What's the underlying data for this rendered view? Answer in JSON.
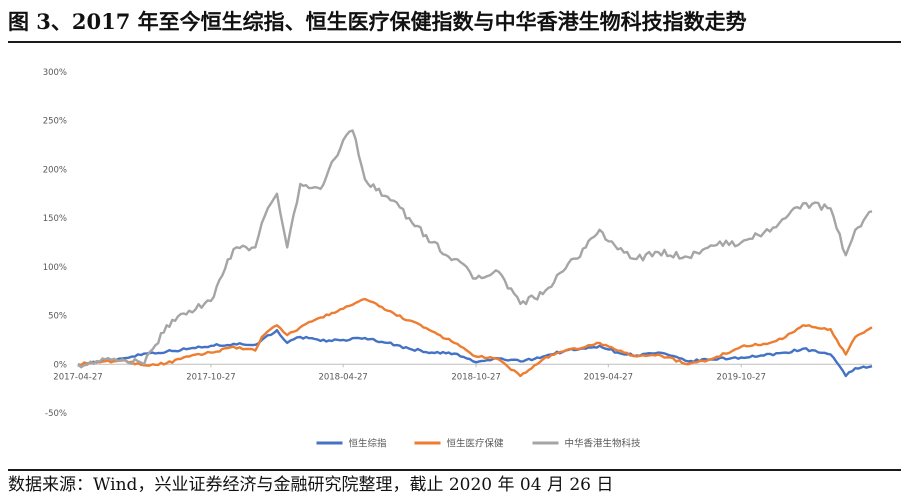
{
  "figure": {
    "title": "图 3、2017 年至今恒生综指、恒生医疗保健指数与中华香港生物科技指数走势",
    "source": "数据来源：Wind，兴业证券经济与金融研究院整理，截止 2020 年 04 月 26 日"
  },
  "chart_data": {
    "type": "line",
    "title": "",
    "xlabel": "",
    "ylabel": "",
    "ylim": [
      -50,
      300
    ],
    "y_ticks": [
      -50,
      0,
      50,
      100,
      150,
      200,
      250,
      300
    ],
    "y_tick_labels": [
      "-50%",
      "0%",
      "50%",
      "100%",
      "150%",
      "200%",
      "250%",
      "300%"
    ],
    "x_range": [
      "2017-04-27",
      "2020-04-24"
    ],
    "x_ticks": [
      "2017-04-27",
      "2017-10-27",
      "2018-04-27",
      "2018-10-27",
      "2019-04-27",
      "2019-10-27"
    ],
    "grid": false,
    "legend_position": "bottom",
    "series": [
      {
        "name": "恒生综指",
        "color": "#4472c4",
        "points": [
          [
            "2017-04-27",
            0
          ],
          [
            "2017-05-27",
            3
          ],
          [
            "2017-06-27",
            6
          ],
          [
            "2017-07-27",
            11
          ],
          [
            "2017-08-27",
            13
          ],
          [
            "2017-09-27",
            16
          ],
          [
            "2017-10-27",
            19
          ],
          [
            "2017-11-27",
            21
          ],
          [
            "2017-12-27",
            20
          ],
          [
            "2018-01-05",
            25
          ],
          [
            "2018-01-26",
            35
          ],
          [
            "2018-02-09",
            22
          ],
          [
            "2018-02-27",
            28
          ],
          [
            "2018-03-27",
            24
          ],
          [
            "2018-04-27",
            25
          ],
          [
            "2018-05-27",
            27
          ],
          [
            "2018-06-27",
            22
          ],
          [
            "2018-07-27",
            16
          ],
          [
            "2018-08-27",
            12
          ],
          [
            "2018-09-27",
            11
          ],
          [
            "2018-10-27",
            2
          ],
          [
            "2018-11-27",
            6
          ],
          [
            "2018-12-27",
            3
          ],
          [
            "2019-01-27",
            8
          ],
          [
            "2019-02-27",
            14
          ],
          [
            "2019-03-27",
            16
          ],
          [
            "2019-04-15",
            19
          ],
          [
            "2019-05-10",
            12
          ],
          [
            "2019-06-05",
            9
          ],
          [
            "2019-07-05",
            12
          ],
          [
            "2019-08-15",
            3
          ],
          [
            "2019-09-15",
            5
          ],
          [
            "2019-10-27",
            7
          ],
          [
            "2019-11-27",
            9
          ],
          [
            "2019-12-27",
            12
          ],
          [
            "2020-01-20",
            16
          ],
          [
            "2020-02-27",
            10
          ],
          [
            "2020-03-19",
            -12
          ],
          [
            "2020-04-01",
            -4
          ],
          [
            "2020-04-24",
            -2
          ]
        ]
      },
      {
        "name": "恒生医疗保健",
        "color": "#ed7d31",
        "points": [
          [
            "2017-04-27",
            0
          ],
          [
            "2017-05-27",
            2
          ],
          [
            "2017-06-27",
            4
          ],
          [
            "2017-07-27",
            -1
          ],
          [
            "2017-08-27",
            1
          ],
          [
            "2017-09-27",
            8
          ],
          [
            "2017-10-27",
            12
          ],
          [
            "2017-11-27",
            18
          ],
          [
            "2017-12-27",
            14
          ],
          [
            "2018-01-05",
            28
          ],
          [
            "2018-01-26",
            40
          ],
          [
            "2018-02-09",
            30
          ],
          [
            "2018-02-27",
            38
          ],
          [
            "2018-03-27",
            48
          ],
          [
            "2018-04-27",
            57
          ],
          [
            "2018-05-27",
            67
          ],
          [
            "2018-06-27",
            55
          ],
          [
            "2018-07-27",
            45
          ],
          [
            "2018-08-27",
            34
          ],
          [
            "2018-09-27",
            22
          ],
          [
            "2018-10-27",
            8
          ],
          [
            "2018-11-27",
            5
          ],
          [
            "2018-12-27",
            -12
          ],
          [
            "2019-01-27",
            5
          ],
          [
            "2019-02-27",
            14
          ],
          [
            "2019-03-27",
            18
          ],
          [
            "2019-04-15",
            22
          ],
          [
            "2019-05-10",
            14
          ],
          [
            "2019-06-05",
            8
          ],
          [
            "2019-07-05",
            10
          ],
          [
            "2019-08-15",
            0
          ],
          [
            "2019-09-15",
            5
          ],
          [
            "2019-10-27",
            18
          ],
          [
            "2019-11-27",
            21
          ],
          [
            "2019-12-27",
            28
          ],
          [
            "2020-01-20",
            40
          ],
          [
            "2020-02-27",
            36
          ],
          [
            "2020-03-19",
            10
          ],
          [
            "2020-04-01",
            28
          ],
          [
            "2020-04-24",
            38
          ]
        ]
      },
      {
        "name": "中华香港生物科技",
        "color": "#a5a5a5",
        "points": [
          [
            "2017-04-27",
            0
          ],
          [
            "2017-05-27",
            3
          ],
          [
            "2017-06-27",
            5
          ],
          [
            "2017-07-27",
            0
          ],
          [
            "2017-08-27",
            40
          ],
          [
            "2017-09-27",
            55
          ],
          [
            "2017-10-27",
            65
          ],
          [
            "2017-11-27",
            118
          ],
          [
            "2017-12-27",
            120
          ],
          [
            "2018-01-05",
            145
          ],
          [
            "2018-01-26",
            175
          ],
          [
            "2018-02-09",
            120
          ],
          [
            "2018-02-27",
            185
          ],
          [
            "2018-03-27",
            180
          ],
          [
            "2018-04-27",
            230
          ],
          [
            "2018-05-10",
            240
          ],
          [
            "2018-05-27",
            190
          ],
          [
            "2018-06-27",
            172
          ],
          [
            "2018-07-27",
            150
          ],
          [
            "2018-08-27",
            125
          ],
          [
            "2018-09-27",
            108
          ],
          [
            "2018-10-27",
            88
          ],
          [
            "2018-11-27",
            95
          ],
          [
            "2018-12-27",
            62
          ],
          [
            "2019-01-27",
            72
          ],
          [
            "2019-02-27",
            98
          ],
          [
            "2019-03-27",
            120
          ],
          [
            "2019-04-15",
            138
          ],
          [
            "2019-05-10",
            118
          ],
          [
            "2019-06-05",
            108
          ],
          [
            "2019-07-05",
            115
          ],
          [
            "2019-08-15",
            110
          ],
          [
            "2019-09-15",
            122
          ],
          [
            "2019-10-27",
            125
          ],
          [
            "2019-11-27",
            135
          ],
          [
            "2019-12-27",
            150
          ],
          [
            "2020-01-20",
            165
          ],
          [
            "2020-02-27",
            160
          ],
          [
            "2020-03-19",
            112
          ],
          [
            "2020-04-01",
            138
          ],
          [
            "2020-04-24",
            157
          ]
        ]
      }
    ]
  }
}
